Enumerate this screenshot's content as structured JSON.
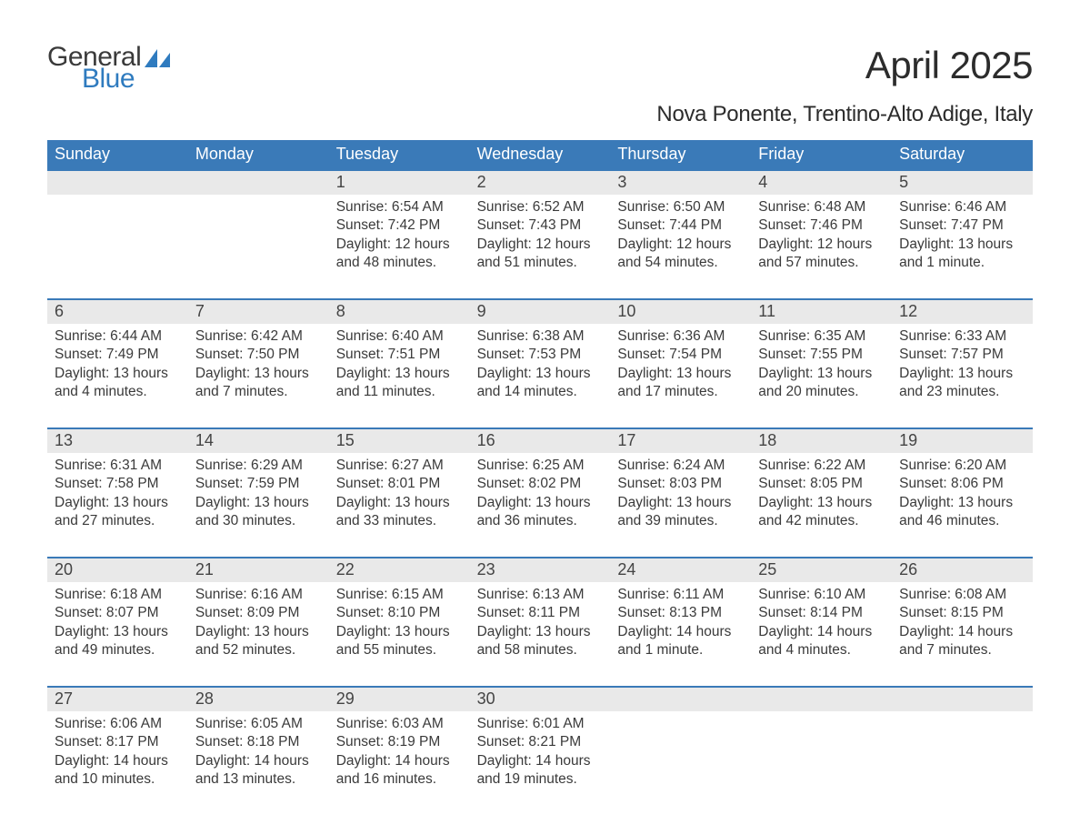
{
  "logo": {
    "word1": "General",
    "word2": "Blue"
  },
  "title": "April 2025",
  "location": "Nova Ponente, Trentino-Alto Adige, Italy",
  "colors": {
    "header_bg": "#3a7ab8",
    "header_text": "#ffffff",
    "daynum_bg": "#e9e9e9",
    "week_border": "#3a7ab8",
    "logo_blue": "#2f7bbf",
    "body_text": "#3a3a3a"
  },
  "weekdays": [
    "Sunday",
    "Monday",
    "Tuesday",
    "Wednesday",
    "Thursday",
    "Friday",
    "Saturday"
  ],
  "weeks": [
    [
      {
        "day": "",
        "lines": []
      },
      {
        "day": "",
        "lines": []
      },
      {
        "day": "1",
        "lines": [
          "Sunrise: 6:54 AM",
          "Sunset: 7:42 PM",
          "Daylight: 12 hours",
          "and 48 minutes."
        ]
      },
      {
        "day": "2",
        "lines": [
          "Sunrise: 6:52 AM",
          "Sunset: 7:43 PM",
          "Daylight: 12 hours",
          "and 51 minutes."
        ]
      },
      {
        "day": "3",
        "lines": [
          "Sunrise: 6:50 AM",
          "Sunset: 7:44 PM",
          "Daylight: 12 hours",
          "and 54 minutes."
        ]
      },
      {
        "day": "4",
        "lines": [
          "Sunrise: 6:48 AM",
          "Sunset: 7:46 PM",
          "Daylight: 12 hours",
          "and 57 minutes."
        ]
      },
      {
        "day": "5",
        "lines": [
          "Sunrise: 6:46 AM",
          "Sunset: 7:47 PM",
          "Daylight: 13 hours",
          "and 1 minute."
        ]
      }
    ],
    [
      {
        "day": "6",
        "lines": [
          "Sunrise: 6:44 AM",
          "Sunset: 7:49 PM",
          "Daylight: 13 hours",
          "and 4 minutes."
        ]
      },
      {
        "day": "7",
        "lines": [
          "Sunrise: 6:42 AM",
          "Sunset: 7:50 PM",
          "Daylight: 13 hours",
          "and 7 minutes."
        ]
      },
      {
        "day": "8",
        "lines": [
          "Sunrise: 6:40 AM",
          "Sunset: 7:51 PM",
          "Daylight: 13 hours",
          "and 11 minutes."
        ]
      },
      {
        "day": "9",
        "lines": [
          "Sunrise: 6:38 AM",
          "Sunset: 7:53 PM",
          "Daylight: 13 hours",
          "and 14 minutes."
        ]
      },
      {
        "day": "10",
        "lines": [
          "Sunrise: 6:36 AM",
          "Sunset: 7:54 PM",
          "Daylight: 13 hours",
          "and 17 minutes."
        ]
      },
      {
        "day": "11",
        "lines": [
          "Sunrise: 6:35 AM",
          "Sunset: 7:55 PM",
          "Daylight: 13 hours",
          "and 20 minutes."
        ]
      },
      {
        "day": "12",
        "lines": [
          "Sunrise: 6:33 AM",
          "Sunset: 7:57 PM",
          "Daylight: 13 hours",
          "and 23 minutes."
        ]
      }
    ],
    [
      {
        "day": "13",
        "lines": [
          "Sunrise: 6:31 AM",
          "Sunset: 7:58 PM",
          "Daylight: 13 hours",
          "and 27 minutes."
        ]
      },
      {
        "day": "14",
        "lines": [
          "Sunrise: 6:29 AM",
          "Sunset: 7:59 PM",
          "Daylight: 13 hours",
          "and 30 minutes."
        ]
      },
      {
        "day": "15",
        "lines": [
          "Sunrise: 6:27 AM",
          "Sunset: 8:01 PM",
          "Daylight: 13 hours",
          "and 33 minutes."
        ]
      },
      {
        "day": "16",
        "lines": [
          "Sunrise: 6:25 AM",
          "Sunset: 8:02 PM",
          "Daylight: 13 hours",
          "and 36 minutes."
        ]
      },
      {
        "day": "17",
        "lines": [
          "Sunrise: 6:24 AM",
          "Sunset: 8:03 PM",
          "Daylight: 13 hours",
          "and 39 minutes."
        ]
      },
      {
        "day": "18",
        "lines": [
          "Sunrise: 6:22 AM",
          "Sunset: 8:05 PM",
          "Daylight: 13 hours",
          "and 42 minutes."
        ]
      },
      {
        "day": "19",
        "lines": [
          "Sunrise: 6:20 AM",
          "Sunset: 8:06 PM",
          "Daylight: 13 hours",
          "and 46 minutes."
        ]
      }
    ],
    [
      {
        "day": "20",
        "lines": [
          "Sunrise: 6:18 AM",
          "Sunset: 8:07 PM",
          "Daylight: 13 hours",
          "and 49 minutes."
        ]
      },
      {
        "day": "21",
        "lines": [
          "Sunrise: 6:16 AM",
          "Sunset: 8:09 PM",
          "Daylight: 13 hours",
          "and 52 minutes."
        ]
      },
      {
        "day": "22",
        "lines": [
          "Sunrise: 6:15 AM",
          "Sunset: 8:10 PM",
          "Daylight: 13 hours",
          "and 55 minutes."
        ]
      },
      {
        "day": "23",
        "lines": [
          "Sunrise: 6:13 AM",
          "Sunset: 8:11 PM",
          "Daylight: 13 hours",
          "and 58 minutes."
        ]
      },
      {
        "day": "24",
        "lines": [
          "Sunrise: 6:11 AM",
          "Sunset: 8:13 PM",
          "Daylight: 14 hours",
          "and 1 minute."
        ]
      },
      {
        "day": "25",
        "lines": [
          "Sunrise: 6:10 AM",
          "Sunset: 8:14 PM",
          "Daylight: 14 hours",
          "and 4 minutes."
        ]
      },
      {
        "day": "26",
        "lines": [
          "Sunrise: 6:08 AM",
          "Sunset: 8:15 PM",
          "Daylight: 14 hours",
          "and 7 minutes."
        ]
      }
    ],
    [
      {
        "day": "27",
        "lines": [
          "Sunrise: 6:06 AM",
          "Sunset: 8:17 PM",
          "Daylight: 14 hours",
          "and 10 minutes."
        ]
      },
      {
        "day": "28",
        "lines": [
          "Sunrise: 6:05 AM",
          "Sunset: 8:18 PM",
          "Daylight: 14 hours",
          "and 13 minutes."
        ]
      },
      {
        "day": "29",
        "lines": [
          "Sunrise: 6:03 AM",
          "Sunset: 8:19 PM",
          "Daylight: 14 hours",
          "and 16 minutes."
        ]
      },
      {
        "day": "30",
        "lines": [
          "Sunrise: 6:01 AM",
          "Sunset: 8:21 PM",
          "Daylight: 14 hours",
          "and 19 minutes."
        ]
      },
      {
        "day": "",
        "lines": []
      },
      {
        "day": "",
        "lines": []
      },
      {
        "day": "",
        "lines": []
      }
    ]
  ]
}
